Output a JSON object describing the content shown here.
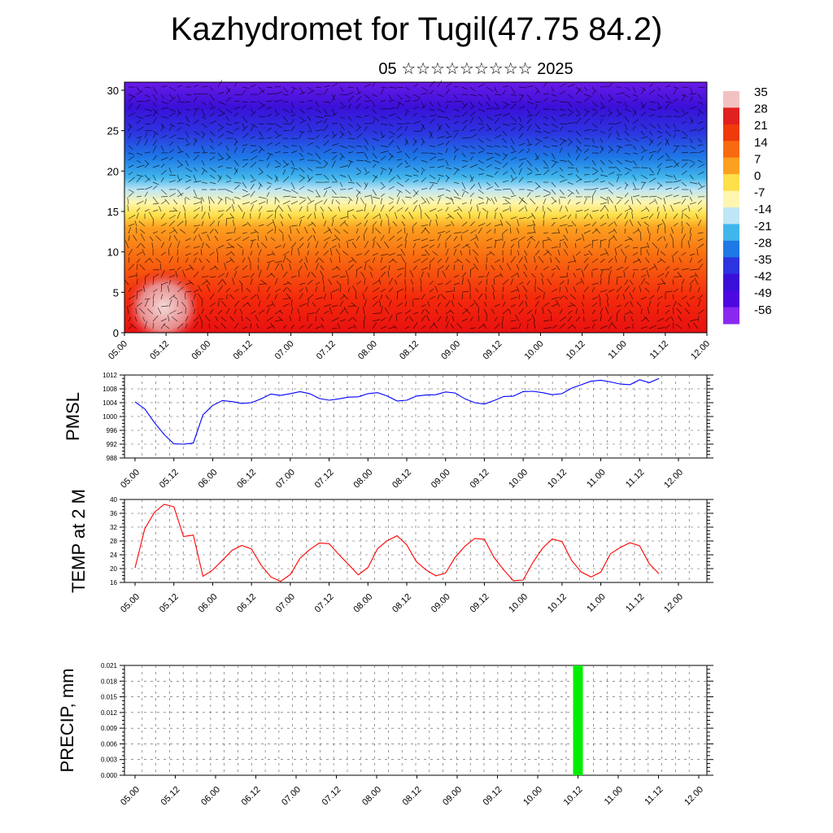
{
  "header": {
    "title": "Kazhydromet for Tugil(47.75 84.2)",
    "subtitle": "05 ☆☆☆☆☆☆☆☆☆ 2025"
  },
  "chart_data": [
    {
      "type": "heatmap",
      "title": "",
      "x_tick_labels": [
        "05.00",
        "05.12",
        "06.00",
        "06.12",
        "07.00",
        "07.12",
        "08.00",
        "08.12",
        "09.00",
        "09.12",
        "10.00",
        "10.12",
        "11.00",
        "11.12",
        "12.00"
      ],
      "y_ticks": [
        0,
        5,
        10,
        15,
        20,
        25,
        30
      ],
      "ylim": [
        0,
        31
      ],
      "overlay": "wind vectors",
      "colorbar_labels": [
        "35",
        "28",
        "21",
        "14",
        "7",
        "0",
        "-7",
        "-14",
        "-21",
        "-28",
        "-35",
        "-42",
        "-49",
        "-56"
      ],
      "colorbar_colors": [
        "#f2c2c2",
        "#e12020",
        "#ef3a0c",
        "#f86a10",
        "#fca020",
        "#fde04a",
        "#fef6b0",
        "#bfe6f4",
        "#41b6ec",
        "#1e78e6",
        "#2c34e0",
        "#3a10d8",
        "#4d08e0",
        "#8a28f0"
      ]
    },
    {
      "type": "line",
      "ylabel": "PMSL",
      "x_tick_labels": [
        "05.00",
        "05.12",
        "06.00",
        "06.12",
        "07.00",
        "07.12",
        "08.00",
        "08.12",
        "09.00",
        "09.12",
        "10.00",
        "10.12",
        "11.00",
        "11.12",
        "12.00"
      ],
      "ylim": [
        988,
        1012
      ],
      "y_ticks": [
        988,
        992,
        996,
        1000,
        1004,
        1008,
        1012
      ],
      "color": "#0000ff",
      "x_hours": [
        0,
        3,
        6,
        9,
        12,
        15,
        18,
        21,
        24,
        27,
        30,
        33,
        36,
        39,
        42,
        45,
        48,
        51,
        54,
        57,
        60,
        63,
        66,
        69,
        72,
        75,
        78,
        81,
        84,
        87,
        90,
        93,
        96,
        99,
        102,
        105,
        108,
        111,
        114,
        117,
        120,
        123,
        126,
        129,
        132,
        135,
        138,
        141,
        144,
        147,
        150,
        153,
        156,
        159,
        162
      ],
      "values": [
        1004.2,
        1002.2,
        998.2,
        994.8,
        992.1,
        992.0,
        992.3,
        1000.5,
        1003.2,
        1004.6,
        1004.3,
        1003.8,
        1004.0,
        1005.1,
        1006.5,
        1006.1,
        1006.6,
        1007.2,
        1006.6,
        1005.2,
        1004.7,
        1005.1,
        1005.6,
        1005.7,
        1006.6,
        1006.9,
        1005.9,
        1004.5,
        1004.7,
        1005.9,
        1006.2,
        1006.3,
        1007.1,
        1006.8,
        1005.1,
        1004.0,
        1003.6,
        1004.6,
        1005.8,
        1005.9,
        1007.2,
        1007.3,
        1006.9,
        1006.3,
        1006.6,
        1008.2,
        1009.2,
        1010.2,
        1010.5,
        1010.0,
        1009.4,
        1009.2,
        1010.6,
        1009.8,
        1011.0
      ]
    },
    {
      "type": "line",
      "ylabel": "TEMP at 2 M",
      "x_tick_labels": [
        "05.00",
        "05.12",
        "06.00",
        "06.12",
        "07.00",
        "07.12",
        "08.00",
        "08.12",
        "09.00",
        "09.12",
        "10.00",
        "10.12",
        "11.00",
        "11.12",
        "12.00"
      ],
      "ylim": [
        16,
        40
      ],
      "y_ticks": [
        16,
        20,
        24,
        28,
        32,
        36,
        40
      ],
      "color": "#ff0000",
      "x_hours": [
        0,
        3,
        6,
        9,
        12,
        15,
        18,
        21,
        24,
        27,
        30,
        33,
        36,
        39,
        42,
        45,
        48,
        51,
        54,
        57,
        60,
        63,
        66,
        69,
        72,
        75,
        78,
        81,
        84,
        87,
        90,
        93,
        96,
        99,
        102,
        105,
        108,
        111,
        114,
        117,
        120,
        123,
        126,
        129,
        132,
        135,
        138,
        141,
        144,
        147,
        150,
        153,
        156,
        159,
        162
      ],
      "values": [
        20.2,
        31.5,
        36.3,
        38.6,
        37.9,
        29.3,
        29.7,
        17.8,
        19.6,
        22.4,
        25.3,
        26.7,
        25.7,
        21.0,
        17.6,
        16.3,
        18.3,
        23.0,
        25.5,
        27.4,
        27.2,
        24.1,
        21.2,
        18.2,
        20.3,
        25.8,
        28.1,
        29.5,
        26.9,
        22.0,
        19.6,
        17.9,
        18.7,
        23.3,
        26.5,
        28.7,
        28.5,
        23.2,
        19.6,
        16.5,
        16.7,
        21.8,
        25.9,
        28.6,
        27.8,
        22.3,
        19.0,
        17.6,
        19.0,
        24.3,
        26.1,
        27.5,
        26.6,
        21.4,
        18.5
      ]
    },
    {
      "type": "bar",
      "ylabel": "PRECIP, mm",
      "x_tick_labels": [
        "05.00",
        "05.12",
        "06.00",
        "06.12",
        "07.00",
        "07.12",
        "08.00",
        "08.12",
        "09.00",
        "09.12",
        "10.00",
        "10.12",
        "11.00",
        "11.12",
        "12.00"
      ],
      "ylim": [
        0,
        0.021
      ],
      "y_tick_labels": [
        "0.000",
        "0.003",
        "0.006",
        "0.009",
        "0.012",
        "0.015",
        "0.018",
        "0.021"
      ],
      "color": "#00ee00",
      "bars": [
        {
          "x_hours": 132,
          "value": 0.021
        }
      ]
    }
  ]
}
